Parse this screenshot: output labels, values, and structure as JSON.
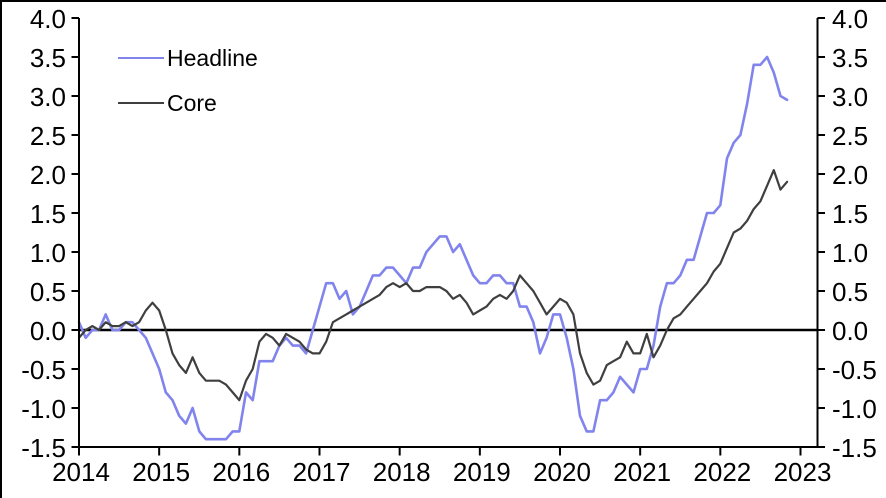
{
  "chart_data": {
    "type": "line",
    "title": "",
    "xlabel": "",
    "ylabel": "",
    "x_unit": "month",
    "x_start": "2014-01",
    "x_end": "2022-11",
    "x_tick_labels": [
      "2014",
      "2015",
      "2016",
      "2017",
      "2018",
      "2019",
      "2020",
      "2021",
      "2022",
      "2023"
    ],
    "y_ticks": [
      4.0,
      3.5,
      3.0,
      2.5,
      2.0,
      1.5,
      1.0,
      0.5,
      0.0,
      -0.5,
      -1.0,
      -1.5
    ],
    "y_tick_labels": [
      "4.0",
      "3.5",
      "3.0",
      "2.5",
      "2.0",
      "1.5",
      "1.0",
      "0.5",
      "0.0",
      "-0.5",
      "-1.0",
      "-1.5"
    ],
    "ylim": [
      -1.5,
      4.0
    ],
    "grid": false,
    "zero_line": true,
    "mirrored_y_axes": true,
    "legend_position": "top-left-inside",
    "series": [
      {
        "name": "Headline",
        "color": "#8284ed",
        "values": [
          0.1,
          -0.1,
          0.0,
          0.0,
          0.2,
          0.0,
          0.0,
          0.1,
          0.1,
          0.0,
          -0.1,
          -0.3,
          -0.5,
          -0.8,
          -0.9,
          -1.1,
          -1.2,
          -1.0,
          -1.3,
          -1.4,
          -1.4,
          -1.4,
          -1.4,
          -1.3,
          -1.3,
          -0.8,
          -0.9,
          -0.4,
          -0.4,
          -0.4,
          -0.2,
          -0.1,
          -0.2,
          -0.2,
          -0.3,
          0.0,
          0.3,
          0.6,
          0.6,
          0.4,
          0.5,
          0.2,
          0.3,
          0.5,
          0.7,
          0.7,
          0.8,
          0.8,
          0.7,
          0.6,
          0.8,
          0.8,
          1.0,
          1.1,
          1.2,
          1.2,
          1.0,
          1.1,
          0.9,
          0.7,
          0.6,
          0.6,
          0.7,
          0.7,
          0.6,
          0.6,
          0.3,
          0.3,
          0.1,
          -0.3,
          -0.1,
          0.2,
          0.2,
          -0.1,
          -0.5,
          -1.1,
          -1.3,
          -1.3,
          -0.9,
          -0.9,
          -0.8,
          -0.6,
          -0.7,
          -0.8,
          -0.5,
          -0.5,
          -0.2,
          0.3,
          0.6,
          0.6,
          0.7,
          0.9,
          0.9,
          1.2,
          1.5,
          1.5,
          1.6,
          2.2,
          2.4,
          2.5,
          2.9,
          3.4,
          3.4,
          3.5,
          3.3,
          3.0,
          2.95
        ]
      },
      {
        "name": "Core",
        "color": "#3f3f3f",
        "values": [
          -0.1,
          0.0,
          0.05,
          0.0,
          0.1,
          0.05,
          0.05,
          0.1,
          0.05,
          0.1,
          0.25,
          0.35,
          0.25,
          0.0,
          -0.3,
          -0.45,
          -0.55,
          -0.35,
          -0.55,
          -0.65,
          -0.65,
          -0.65,
          -0.7,
          -0.8,
          -0.9,
          -0.65,
          -0.5,
          -0.15,
          -0.05,
          -0.1,
          -0.2,
          -0.05,
          -0.1,
          -0.15,
          -0.25,
          -0.3,
          -0.3,
          -0.15,
          0.1,
          0.15,
          0.2,
          0.25,
          0.3,
          0.35,
          0.4,
          0.45,
          0.55,
          0.6,
          0.55,
          0.6,
          0.5,
          0.5,
          0.55,
          0.55,
          0.55,
          0.5,
          0.4,
          0.45,
          0.35,
          0.2,
          0.25,
          0.3,
          0.4,
          0.45,
          0.4,
          0.5,
          0.7,
          0.6,
          0.5,
          0.35,
          0.2,
          0.3,
          0.4,
          0.35,
          0.2,
          -0.3,
          -0.55,
          -0.7,
          -0.65,
          -0.45,
          -0.4,
          -0.35,
          -0.15,
          -0.3,
          -0.3,
          -0.05,
          -0.35,
          -0.2,
          0.0,
          0.15,
          0.2,
          0.3,
          0.4,
          0.5,
          0.6,
          0.75,
          0.85,
          1.05,
          1.25,
          1.3,
          1.4,
          1.55,
          1.65,
          1.85,
          2.05,
          1.8,
          1.9
        ]
      }
    ]
  },
  "legend": {
    "headline_label": "Headline",
    "core_label": "Core"
  },
  "colors": {
    "headline": "#8284ed",
    "core": "#3f3f3f",
    "axis": "#000000",
    "background": "#ffffff"
  }
}
